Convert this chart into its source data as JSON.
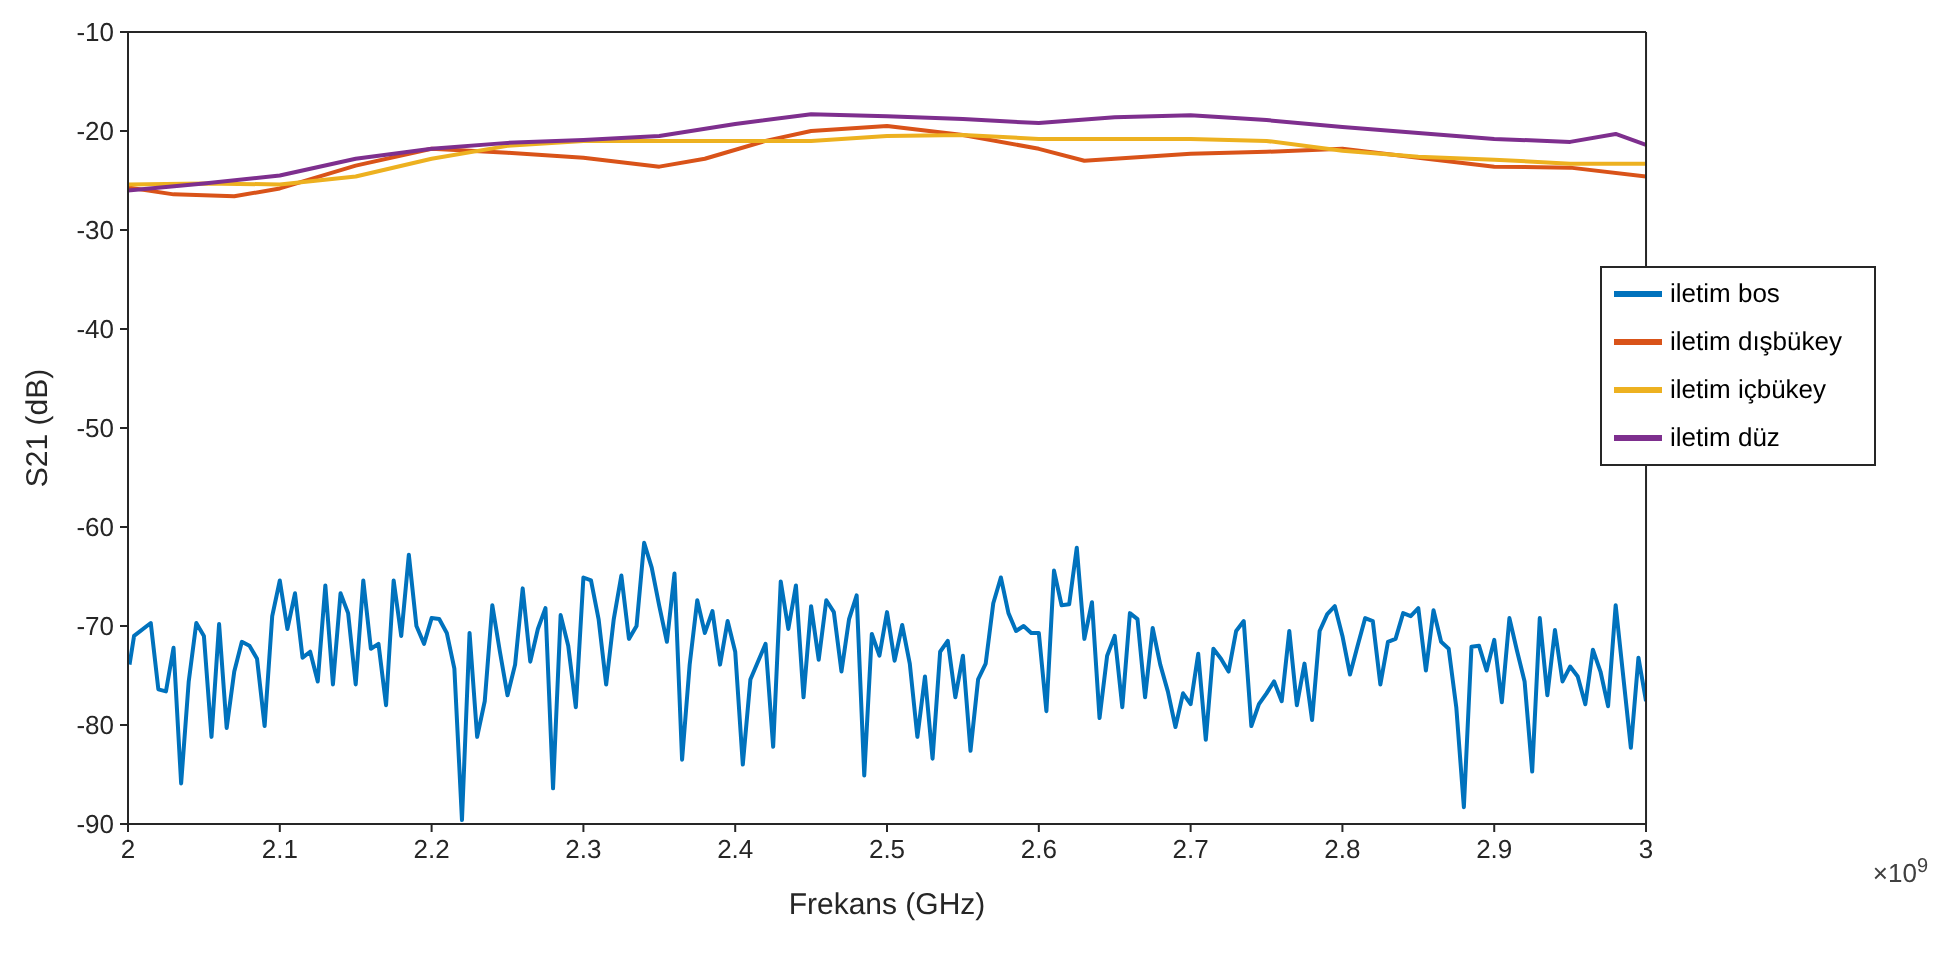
{
  "chart_data": {
    "type": "line",
    "xlabel": "Frekans (GHz)",
    "ylabel": "S21 (dB)",
    "xlim": [
      2,
      3
    ],
    "xticks": [
      2,
      2.1,
      2.2,
      2.3,
      2.4,
      2.5,
      2.6,
      2.7,
      2.8,
      2.9,
      3
    ],
    "ylim": [
      -90,
      -10
    ],
    "yticks": [
      -90,
      -80,
      -70,
      -60,
      -50,
      -40,
      -30,
      -20,
      -10
    ],
    "legend": "right",
    "annotations": [
      "×10$^{9}$"
    ],
    "series": [
      {
        "name": "iletim bos",
        "color": "#0072bd",
        "x": [
          2.001,
          2.004,
          2.015,
          2.02,
          2.025,
          2.03,
          2.035,
          2.04,
          2.045,
          2.05,
          2.055,
          2.06,
          2.065,
          2.07,
          2.075,
          2.08,
          2.085,
          2.09,
          2.095,
          2.1,
          2.105,
          2.11,
          2.115,
          2.12,
          2.125,
          2.13,
          2.135,
          2.14,
          2.145,
          2.15,
          2.155,
          2.16,
          2.165,
          2.17,
          2.175,
          2.18,
          2.185,
          2.19,
          2.195,
          2.2,
          2.205,
          2.21,
          2.215,
          2.22,
          2.225,
          2.23,
          2.235,
          2.24,
          2.245,
          2.25,
          2.255,
          2.26,
          2.265,
          2.27,
          2.275,
          2.28,
          2.285,
          2.29,
          2.295,
          2.3,
          2.305,
          2.31,
          2.315,
          2.32,
          2.325,
          2.33,
          2.335,
          2.34,
          2.345,
          2.35,
          2.355,
          2.36,
          2.365,
          2.37,
          2.375,
          2.38,
          2.385,
          2.39,
          2.395,
          2.4,
          2.405,
          2.41,
          2.42,
          2.425,
          2.43,
          2.435,
          2.44,
          2.445,
          2.45,
          2.455,
          2.46,
          2.465,
          2.47,
          2.475,
          2.48,
          2.485,
          2.49,
          2.495,
          2.5,
          2.505,
          2.51,
          2.515,
          2.52,
          2.525,
          2.53,
          2.535,
          2.54,
          2.545,
          2.55,
          2.555,
          2.56,
          2.565,
          2.57,
          2.575,
          2.58,
          2.585,
          2.59,
          2.595,
          2.6,
          2.605,
          2.61,
          2.615,
          2.62,
          2.625,
          2.63,
          2.635,
          2.64,
          2.645,
          2.65,
          2.655,
          2.66,
          2.665,
          2.67,
          2.675,
          2.68,
          2.685,
          2.69,
          2.695,
          2.7,
          2.705,
          2.71,
          2.715,
          2.72,
          2.725,
          2.73,
          2.735,
          2.74,
          2.745,
          2.75,
          2.755,
          2.76,
          2.765,
          2.77,
          2.775,
          2.78,
          2.785,
          2.79,
          2.795,
          2.8,
          2.805,
          2.81,
          2.815,
          2.82,
          2.825,
          2.83,
          2.835,
          2.84,
          2.845,
          2.85,
          2.855,
          2.86,
          2.865,
          2.87,
          2.875,
          2.88,
          2.885,
          2.89,
          2.895,
          2.9,
          2.905,
          2.91,
          2.915,
          2.92,
          2.925,
          2.93,
          2.935,
          2.94,
          2.945,
          2.95,
          2.955,
          2.96,
          2.965,
          2.97,
          2.975,
          2.98,
          2.99,
          2.995,
          3
        ],
        "values": [
          -73.9,
          -71,
          -69.7,
          -76.4,
          -76.6,
          -72.2,
          -85.9,
          -75.6,
          -69.7,
          -71,
          -81.2,
          -69.8,
          -80.3,
          -74.6,
          -71.6,
          -72,
          -73.3,
          -80.1,
          -69,
          -65.4,
          -70.3,
          -66.7,
          -73.2,
          -72.6,
          -75.6,
          -65.9,
          -75.9,
          -66.7,
          -68.7,
          -75.9,
          -65.4,
          -72.3,
          -71.8,
          -78,
          -65.4,
          -71,
          -62.8,
          -70,
          -71.8,
          -69.2,
          -69.3,
          -70.7,
          -74.3,
          -89.6,
          -70.7,
          -81.2,
          -77.6,
          -67.9,
          -72.6,
          -77,
          -73.9,
          -66.2,
          -73.6,
          -70.3,
          -68.2,
          -86.4,
          -68.9,
          -72,
          -78.2,
          -65.1,
          -65.4,
          -69.3,
          -75.9,
          -69.3,
          -64.9,
          -71.3,
          -70,
          -61.6,
          -64.1,
          -68,
          -71.6,
          -64.7,
          -83.5,
          -73.9,
          -67.4,
          -70.7,
          -68.5,
          -73.9,
          -69.5,
          -72.6,
          -84,
          -75.4,
          -71.8,
          -82.2,
          -65.5,
          -70.3,
          -65.9,
          -77.2,
          -68,
          -73.4,
          -67.4,
          -68.6,
          -74.6,
          -69.3,
          -66.9,
          -85.1,
          -70.8,
          -73,
          -68.6,
          -73.5,
          -69.9,
          -73.8,
          -81.2,
          -75.1,
          -83.4,
          -72.6,
          -71.5,
          -77.2,
          -73,
          -82.6,
          -75.4,
          -73.8,
          -67.7,
          -65.1,
          -68.7,
          -70.5,
          -70,
          -70.7,
          -70.7,
          -78.6,
          -64.4,
          -67.9,
          -67.8,
          -62.1,
          -71.3,
          -67.6,
          -79.3,
          -73,
          -71,
          -78.2,
          -68.7,
          -69.3,
          -77.2,
          -70.2,
          -73.9,
          -76.6,
          -80.2,
          -76.8,
          -77.9,
          -72.8,
          -81.5,
          -72.3,
          -73.3,
          -74.6,
          -70.5,
          -69.5,
          -80.1,
          -77.9,
          -76.8,
          -75.6,
          -77.6,
          -70.5,
          -78,
          -73.8,
          -79.5,
          -70.5,
          -68.8,
          -68,
          -71,
          -74.9,
          -72,
          -69.2,
          -69.5,
          -75.9,
          -71.6,
          -71.3,
          -68.7,
          -69,
          -68.2,
          -74.5,
          -68.4,
          -71.6,
          -72.3,
          -78.2,
          -88.3,
          -72.1,
          -72,
          -74.5,
          -71.4,
          -77.7,
          -69.2,
          -72.5,
          -75.6,
          -84.7,
          -69.2,
          -77,
          -70.4,
          -75.6,
          -74.1,
          -75.1,
          -77.9,
          -72.4,
          -74.6,
          -78.1,
          -67.9,
          -82.3,
          -73.2,
          -77.6
        ]
      },
      {
        "name": "iletim dışbükey",
        "color": "#d95319",
        "x": [
          2,
          2.03,
          2.07,
          2.1,
          2.15,
          2.2,
          2.25,
          2.3,
          2.35,
          2.38,
          2.42,
          2.45,
          2.5,
          2.55,
          2.6,
          2.63,
          2.7,
          2.75,
          2.8,
          2.85,
          2.9,
          2.95,
          3
        ],
        "values": [
          -25.7,
          -26.4,
          -26.6,
          -25.8,
          -23.5,
          -21.8,
          -22.2,
          -22.7,
          -23.6,
          -22.8,
          -21,
          -20,
          -19.5,
          -20.4,
          -21.8,
          -23,
          -22.3,
          -22.1,
          -21.8,
          -22.7,
          -23.6,
          -23.7,
          -24.6
        ]
      },
      {
        "name": "iletim içbükey",
        "color": "#edb120",
        "x": [
          2,
          2.05,
          2.1,
          2.15,
          2.2,
          2.25,
          2.3,
          2.35,
          2.4,
          2.45,
          2.5,
          2.55,
          2.6,
          2.65,
          2.7,
          2.75,
          2.8,
          2.85,
          2.9,
          2.95,
          3
        ],
        "values": [
          -25.4,
          -25.3,
          -25.4,
          -24.6,
          -22.8,
          -21.5,
          -21,
          -21,
          -21,
          -21,
          -20.5,
          -20.4,
          -20.8,
          -20.8,
          -20.8,
          -21,
          -22,
          -22.6,
          -22.9,
          -23.3,
          -23.3
        ]
      },
      {
        "name": "iletim düz",
        "color": "#7e2f8e",
        "x": [
          2,
          2.05,
          2.1,
          2.15,
          2.2,
          2.25,
          2.3,
          2.35,
          2.4,
          2.45,
          2.5,
          2.55,
          2.6,
          2.65,
          2.7,
          2.75,
          2.8,
          2.85,
          2.9,
          2.95,
          2.98,
          3
        ],
        "values": [
          -26,
          -25.3,
          -24.5,
          -22.8,
          -21.8,
          -21.2,
          -20.9,
          -20.5,
          -19.3,
          -18.3,
          -18.5,
          -18.8,
          -19.2,
          -18.6,
          -18.4,
          -18.9,
          -19.6,
          -20.2,
          -20.8,
          -21.1,
          -20.3,
          -21.4
        ]
      }
    ]
  }
}
